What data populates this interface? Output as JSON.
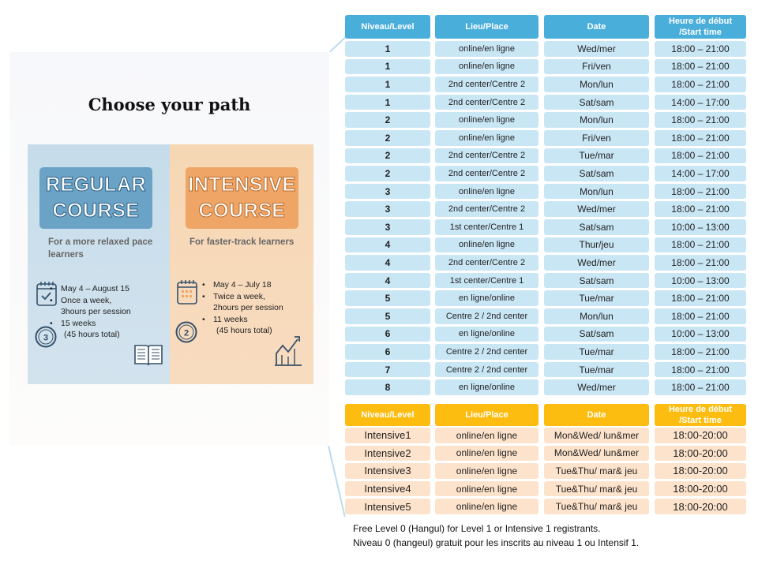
{
  "poster": {
    "title": "Choose your path",
    "regular": {
      "badge_line1": "REGULAR",
      "badge_line2": "COURSE",
      "subtitle": "For a more relaxed pace learners",
      "bullets": [
        "May 4 – August 15",
        "Once a week,",
        "3hours per session",
        "15 weeks",
        "(45 hours total)"
      ],
      "clock_number": "3",
      "icons": [
        "calendar-check-icon",
        "clock-icon",
        "book-icon"
      ]
    },
    "intensive": {
      "badge_line1": "INTENSIVE",
      "badge_line2": "COURSE",
      "subtitle": "For faster-track learners",
      "bullets": [
        "May 4 – July 18",
        "Twice a week,",
        "2hours per session",
        "11 weeks",
        "(45 hours total)"
      ],
      "clock_number": "2",
      "icons": [
        "calendar-icon",
        "clock-icon",
        "growth-chart-icon"
      ]
    },
    "colors": {
      "regular": "#6aa3c6",
      "intensive": "#eea565"
    }
  },
  "regular_table": {
    "headers": [
      "Niveau/Level",
      "Lieu/Place",
      "Date",
      "Heure de début /Start time"
    ],
    "rows": [
      [
        "1",
        "online/en ligne",
        "Wed/mer",
        "18:00 – 21:00"
      ],
      [
        "1",
        "online/en ligne",
        "Fri/ven",
        "18:00 – 21:00"
      ],
      [
        "1",
        "2nd center/Centre 2",
        "Mon/lun",
        "18:00 – 21:00"
      ],
      [
        "1",
        "2nd center/Centre 2",
        "Sat/sam",
        "14:00 – 17:00"
      ],
      [
        "2",
        "online/en ligne",
        "Mon/lun",
        "18:00 – 21:00"
      ],
      [
        "2",
        "online/en ligne",
        "Fri/ven",
        "18:00 – 21:00"
      ],
      [
        "2",
        "2nd center/Centre 2",
        "Tue/mar",
        "18:00 – 21:00"
      ],
      [
        "2",
        "2nd center/Centre 2",
        "Sat/sam",
        "14:00 – 17:00"
      ],
      [
        "3",
        "online/en ligne",
        "Mon/lun",
        "18:00 – 21:00"
      ],
      [
        "3",
        "2nd center/Centre 2",
        "Wed/mer",
        "18:00 – 21:00"
      ],
      [
        "3",
        "1st center/Centre 1",
        "Sat/sam",
        "10:00 – 13:00"
      ],
      [
        "4",
        "online/en ligne",
        "Thur/jeu",
        "18:00 – 21:00"
      ],
      [
        "4",
        "2nd center/Centre 2",
        "Wed/mer",
        "18:00 – 21:00"
      ],
      [
        "4",
        "1st center/Centre 1",
        "Sat/sam",
        "10:00 – 13:00"
      ],
      [
        "5",
        "en ligne/online",
        "Tue/mar",
        "18:00 – 21:00"
      ],
      [
        "5",
        "Centre 2 / 2nd center",
        "Mon/lun",
        "18:00 – 21:00"
      ],
      [
        "6",
        "en ligne/online",
        "Sat/sam",
        "10:00 – 13:00"
      ],
      [
        "6",
        "Centre 2 / 2nd center",
        "Tue/mar",
        "18:00 – 21:00"
      ],
      [
        "7",
        "Centre 2 / 2nd center",
        "Tue/mar",
        "18:00 – 21:00"
      ],
      [
        "8",
        "en ligne/online",
        "Wed/mer",
        "18:00 – 21:00"
      ]
    ],
    "colors": {
      "header": "#4aaedb",
      "cell": "#c9e6f5"
    }
  },
  "intensive_table": {
    "headers": [
      "Niveau/Level",
      "Lieu/Place",
      "Date",
      "Heure de début /Start time"
    ],
    "rows": [
      [
        "Intensive1",
        "online/en ligne",
        "Mon&Wed/ lun&mer",
        "18:00-20:00"
      ],
      [
        "Intensive2",
        "online/en ligne",
        "Mon&Wed/ lun&mer",
        "18:00-20:00"
      ],
      [
        "Intensive3",
        "online/en ligne",
        "Tue&Thu/ mar& jeu",
        "18:00-20:00"
      ],
      [
        "Intensive4",
        "online/en ligne",
        "Tue&Thu/ mar& jeu",
        "18:00-20:00"
      ],
      [
        "Intensive5",
        "online/en ligne",
        "Tue&Thu/ mar& jeu",
        "18:00-20:00"
      ]
    ],
    "colors": {
      "header": "#fcbd10",
      "cell": "#fde3cb"
    }
  },
  "footer": {
    "line1": "Free Level 0 (Hangul) for Level 1 or Intensive 1 registrants.",
    "line2": "Niveau 0 (hangeul) gratuit pour les inscrits au niveau 1 ou Intensif 1."
  }
}
